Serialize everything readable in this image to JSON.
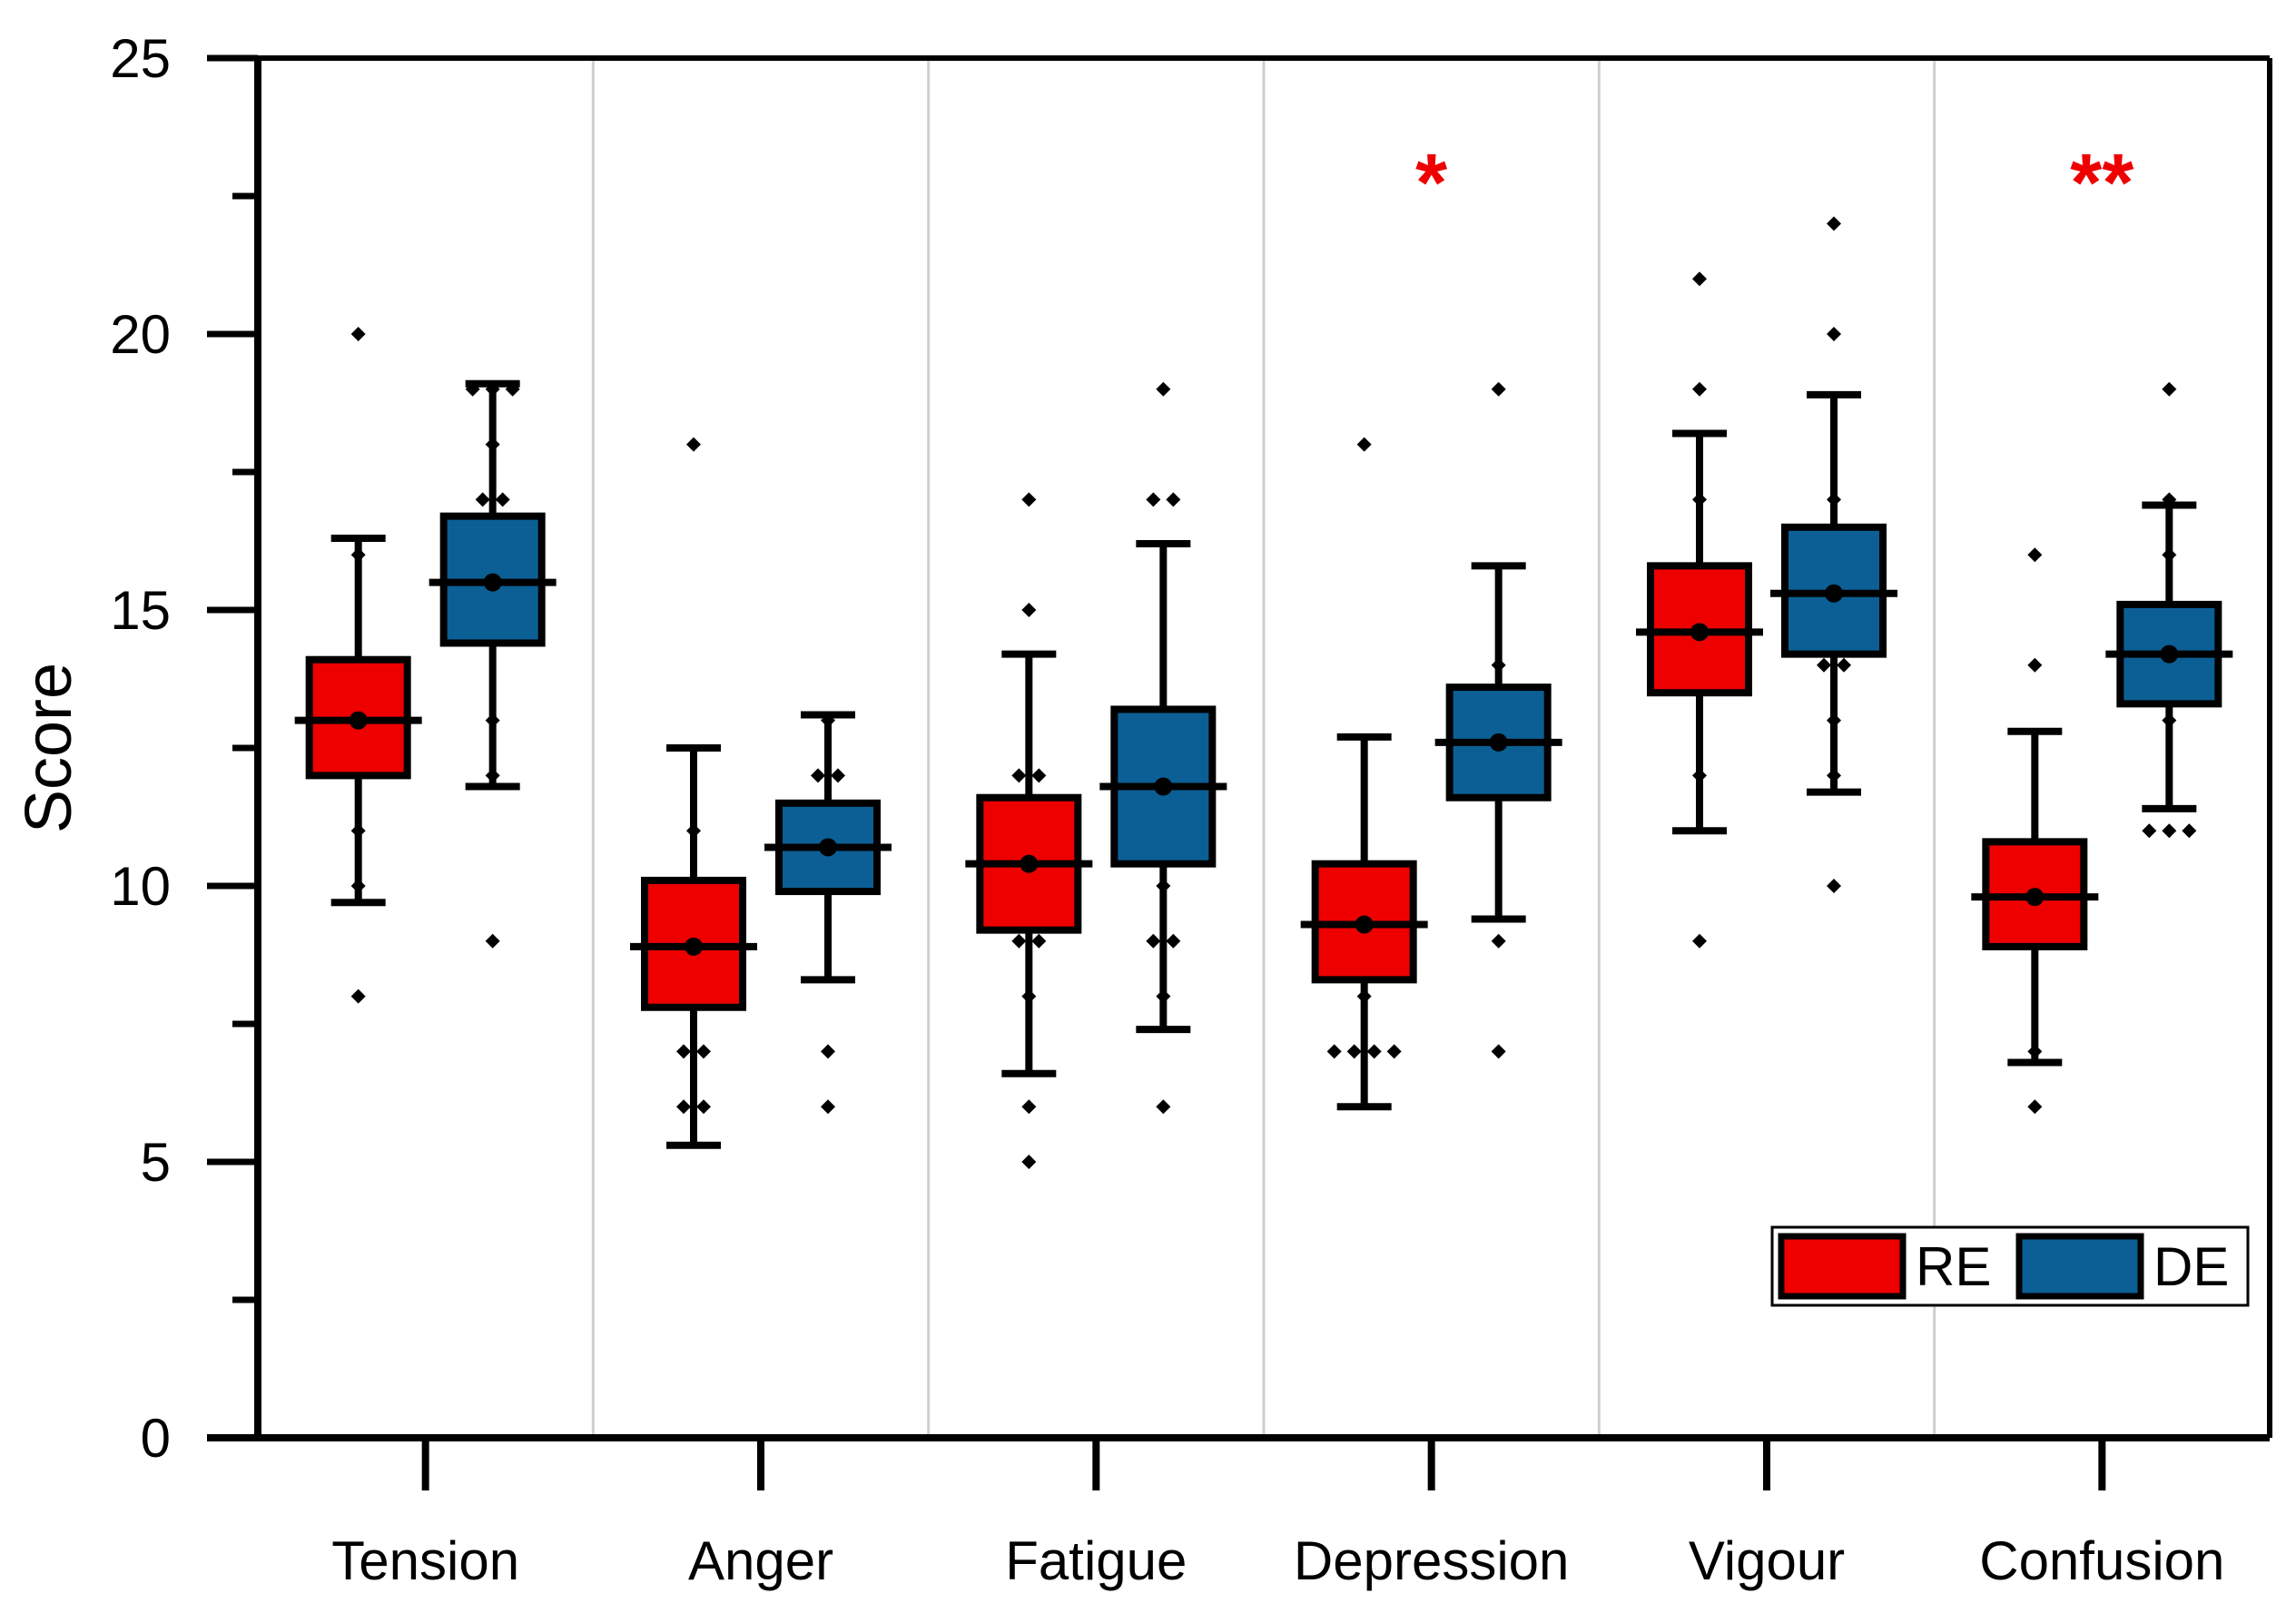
{
  "chart_data": {
    "type": "box",
    "title": "",
    "xlabel": "",
    "ylabel": "Score",
    "ylim": [
      0,
      25
    ],
    "yticks": [
      0,
      5,
      10,
      15,
      20,
      25
    ],
    "grid": "vertical category separators",
    "legend_position": "bottom-right",
    "categories": [
      "Tension",
      "Anger",
      "Fatigue",
      "Depression",
      "Vigour",
      "Confusion"
    ],
    "series": [
      {
        "name": "RE",
        "color": "#ee0000",
        "boxes": [
          {
            "whisker_low": 9.7,
            "q1": 12.0,
            "median": 13.0,
            "mean": 13.0,
            "q3": 14.1,
            "whisker_high": 16.3,
            "points": [
              20,
              16,
              11,
              10,
              8
            ]
          },
          {
            "whisker_low": 5.3,
            "q1": 7.8,
            "median": 8.9,
            "mean": 8.9,
            "q3": 10.1,
            "whisker_high": 12.5,
            "points": [
              18,
              11,
              7,
              7,
              6,
              6
            ]
          },
          {
            "whisker_low": 6.6,
            "q1": 9.2,
            "median": 10.4,
            "mean": 10.4,
            "q3": 11.6,
            "whisker_high": 14.2,
            "points": [
              17,
              15,
              12,
              12,
              9,
              9,
              8,
              6,
              5
            ]
          },
          {
            "whisker_low": 6.0,
            "q1": 8.3,
            "median": 9.3,
            "mean": 9.3,
            "q3": 10.4,
            "whisker_high": 12.7,
            "points": [
              18,
              8,
              7,
              7,
              7,
              7
            ]
          },
          {
            "whisker_low": 11.0,
            "q1": 13.5,
            "median": 14.6,
            "mean": 14.6,
            "q3": 15.8,
            "whisker_high": 18.2,
            "points": [
              21,
              19,
              17,
              12,
              9
            ]
          },
          {
            "whisker_low": 6.8,
            "q1": 8.9,
            "median": 9.8,
            "mean": 9.8,
            "q3": 10.8,
            "whisker_high": 12.8,
            "points": [
              16,
              14,
              7,
              6
            ]
          }
        ]
      },
      {
        "name": "DE",
        "color": "#0b5f95",
        "boxes": [
          {
            "whisker_low": 11.8,
            "q1": 14.4,
            "median": 15.5,
            "mean": 15.5,
            "q3": 16.7,
            "whisker_high": 19.1,
            "points": [
              19,
              19,
              19,
              18,
              17,
              17,
              13,
              12,
              9
            ]
          },
          {
            "whisker_low": 8.3,
            "q1": 9.9,
            "median": 10.7,
            "mean": 10.7,
            "q3": 11.5,
            "whisker_high": 13.1,
            "points": [
              13,
              12,
              12,
              7,
              6
            ]
          },
          {
            "whisker_low": 7.4,
            "q1": 10.4,
            "median": 11.8,
            "mean": 11.8,
            "q3": 13.2,
            "whisker_high": 16.2,
            "points": [
              19,
              17,
              17,
              10,
              9,
              9,
              8,
              6
            ]
          },
          {
            "whisker_low": 9.4,
            "q1": 11.6,
            "median": 12.6,
            "mean": 12.6,
            "q3": 13.6,
            "whisker_high": 15.8,
            "points": [
              19,
              14,
              9,
              7
            ]
          },
          {
            "whisker_low": 11.7,
            "q1": 14.2,
            "median": 15.3,
            "mean": 15.3,
            "q3": 16.5,
            "whisker_high": 18.9,
            "points": [
              22,
              20,
              17,
              14,
              14,
              13,
              12,
              10
            ]
          },
          {
            "whisker_low": 11.4,
            "q1": 13.3,
            "median": 14.2,
            "mean": 14.2,
            "q3": 15.1,
            "whisker_high": 16.9,
            "points": [
              19,
              17,
              16,
              13,
              11,
              11,
              11
            ]
          }
        ]
      }
    ],
    "annotations": [
      {
        "category": "Depression",
        "text": "*",
        "color": "#ee0000"
      },
      {
        "category": "Confusion",
        "text": "**",
        "color": "#ee0000"
      }
    ],
    "legend": [
      {
        "label": "RE",
        "color": "#ee0000"
      },
      {
        "label": "DE",
        "color": "#0b5f95"
      }
    ]
  }
}
